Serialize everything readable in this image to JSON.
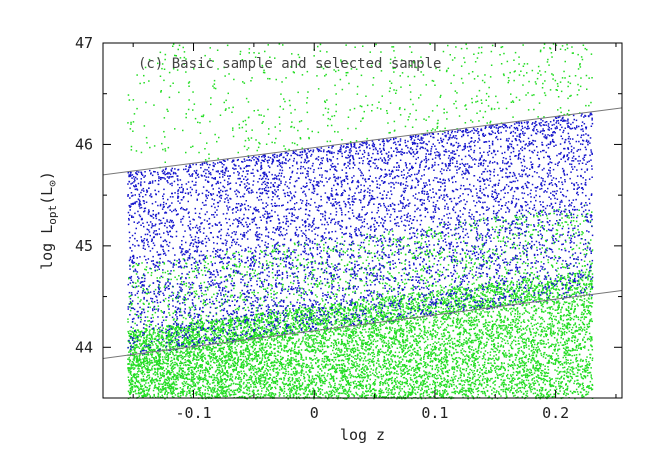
{
  "chart_data": {
    "type": "scatter",
    "title": "",
    "annotation": "(c) Basic sample and selected sample",
    "xlabel": "log z",
    "ylabel": {
      "prefix": "log L",
      "subscript": "opt",
      "suffix_open": "(L",
      "sun_symbol": "⊙",
      "suffix_close": ")"
    },
    "xlim": [
      -0.175,
      0.255
    ],
    "ylim": [
      43.5,
      47.0
    ],
    "x_ticks": [
      -0.1,
      0.0,
      0.1,
      0.2
    ],
    "x_tick_labels": [
      "-0.1",
      "0",
      "0.1",
      "0.2"
    ],
    "y_ticks": [
      44,
      45,
      46,
      47
    ],
    "y_tick_labels": [
      "44",
      "45",
      "46",
      "47"
    ],
    "grid": false,
    "legend": "none",
    "series": [
      {
        "id": "basic",
        "color": "#22dd22",
        "x_range": [
          -0.155,
          0.23
        ],
        "y_range": [
          43.5,
          47.0
        ],
        "density": "dense below lower line, sparse above upper line"
      },
      {
        "id": "selected",
        "color": "#1515cc",
        "x_range": [
          -0.155,
          0.23
        ],
        "lower_line": "selection lower limit",
        "upper_line": "selection upper limit"
      }
    ],
    "lines": [
      {
        "id": "upper_limit",
        "color": "#777777",
        "points": [
          [
            -0.175,
            45.7
          ],
          [
            0.255,
            46.36
          ]
        ]
      },
      {
        "id": "lower_limit",
        "color": "#777777",
        "points": [
          [
            -0.175,
            43.89
          ],
          [
            0.255,
            44.56
          ]
        ]
      }
    ]
  }
}
